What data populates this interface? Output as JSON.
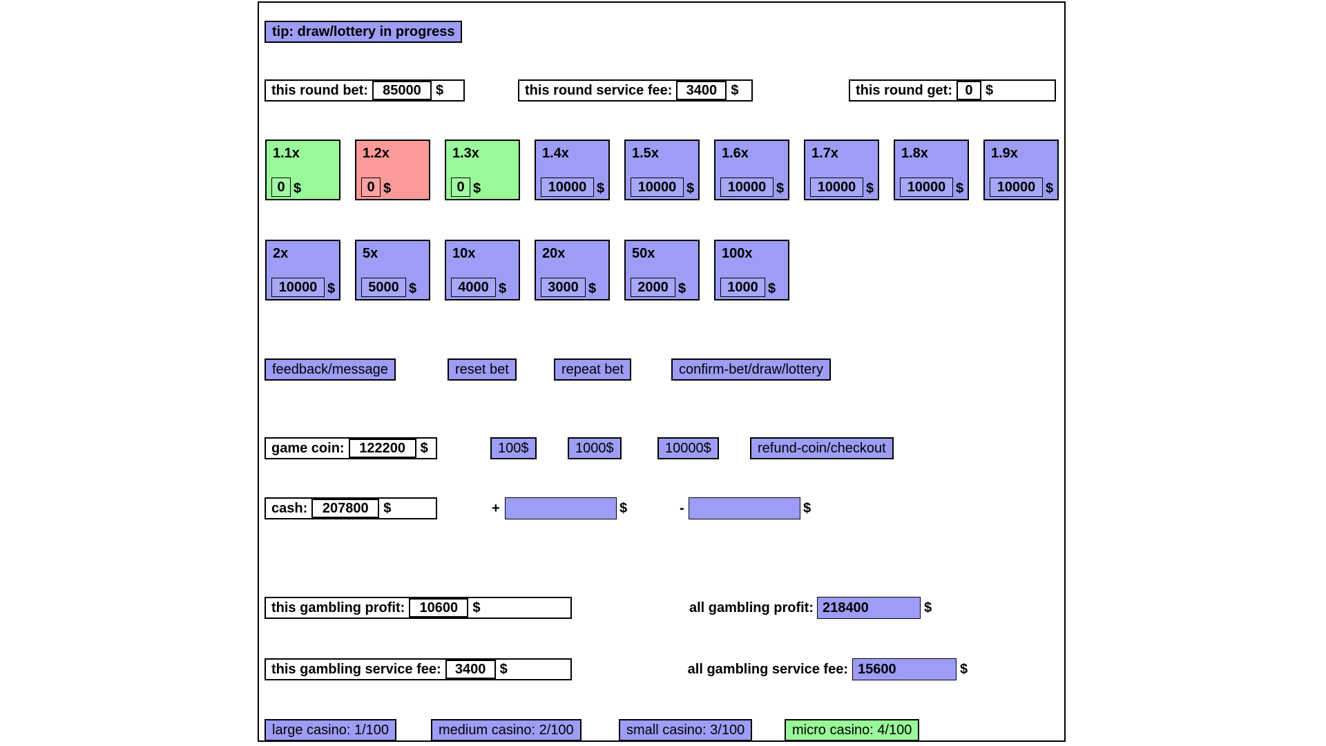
{
  "colors": {
    "purple": "#9d9df6",
    "green": "#99f899",
    "red": "#fc9a9a"
  },
  "currency": "$",
  "tip": {
    "label": "tip: draw/lottery in progress"
  },
  "round": {
    "bet": {
      "label": "this round bet:",
      "value": "85000"
    },
    "service_fee": {
      "label": "this round service fee:",
      "value": "3400"
    },
    "get": {
      "label": "this round get:",
      "value": "0"
    }
  },
  "multipliers": {
    "row1": [
      {
        "label": "1.1x",
        "value": "0",
        "color": "green"
      },
      {
        "label": "1.2x",
        "value": "0",
        "color": "red"
      },
      {
        "label": "1.3x",
        "value": "0",
        "color": "green"
      },
      {
        "label": "1.4x",
        "value": "10000",
        "color": "purple"
      },
      {
        "label": "1.5x",
        "value": "10000",
        "color": "purple"
      },
      {
        "label": "1.6x",
        "value": "10000",
        "color": "purple"
      },
      {
        "label": "1.7x",
        "value": "10000",
        "color": "purple"
      },
      {
        "label": "1.8x",
        "value": "10000",
        "color": "purple"
      },
      {
        "label": "1.9x",
        "value": "10000",
        "color": "purple"
      }
    ],
    "row2": [
      {
        "label": "2x",
        "value": "10000",
        "color": "purple"
      },
      {
        "label": "5x",
        "value": "5000",
        "color": "purple"
      },
      {
        "label": "10x",
        "value": "4000",
        "color": "purple"
      },
      {
        "label": "20x",
        "value": "3000",
        "color": "purple"
      },
      {
        "label": "50x",
        "value": "2000",
        "color": "purple"
      },
      {
        "label": "100x",
        "value": "1000",
        "color": "purple"
      }
    ]
  },
  "actions": {
    "feedback": "feedback/message",
    "reset": "reset bet",
    "repeat": "repeat bet",
    "confirm": "confirm-bet/draw/lottery"
  },
  "coin": {
    "label": "game coin:",
    "value": "122200",
    "add_100": "100$",
    "add_1000": "1000$",
    "add_10000": "10000$",
    "refund": "refund-coin/checkout"
  },
  "cash": {
    "label": "cash:",
    "value": "207800",
    "plus_sign": "+",
    "minus_sign": "-",
    "plus_value": "",
    "minus_value": ""
  },
  "profit": {
    "this_label": "this gambling profit:",
    "this_value": "10600",
    "all_label": "all gambling profit:",
    "all_value": "218400"
  },
  "service_fee": {
    "this_label": "this gambling service fee:",
    "this_value": "3400",
    "all_label": "all gambling service fee:",
    "all_value": "15600"
  },
  "casinos": [
    {
      "label": "large casino: 1/100",
      "color": "purple"
    },
    {
      "label": "medium casino: 2/100",
      "color": "purple"
    },
    {
      "label": "small casino: 3/100",
      "color": "purple"
    },
    {
      "label": "micro casino: 4/100",
      "color": "green"
    }
  ]
}
